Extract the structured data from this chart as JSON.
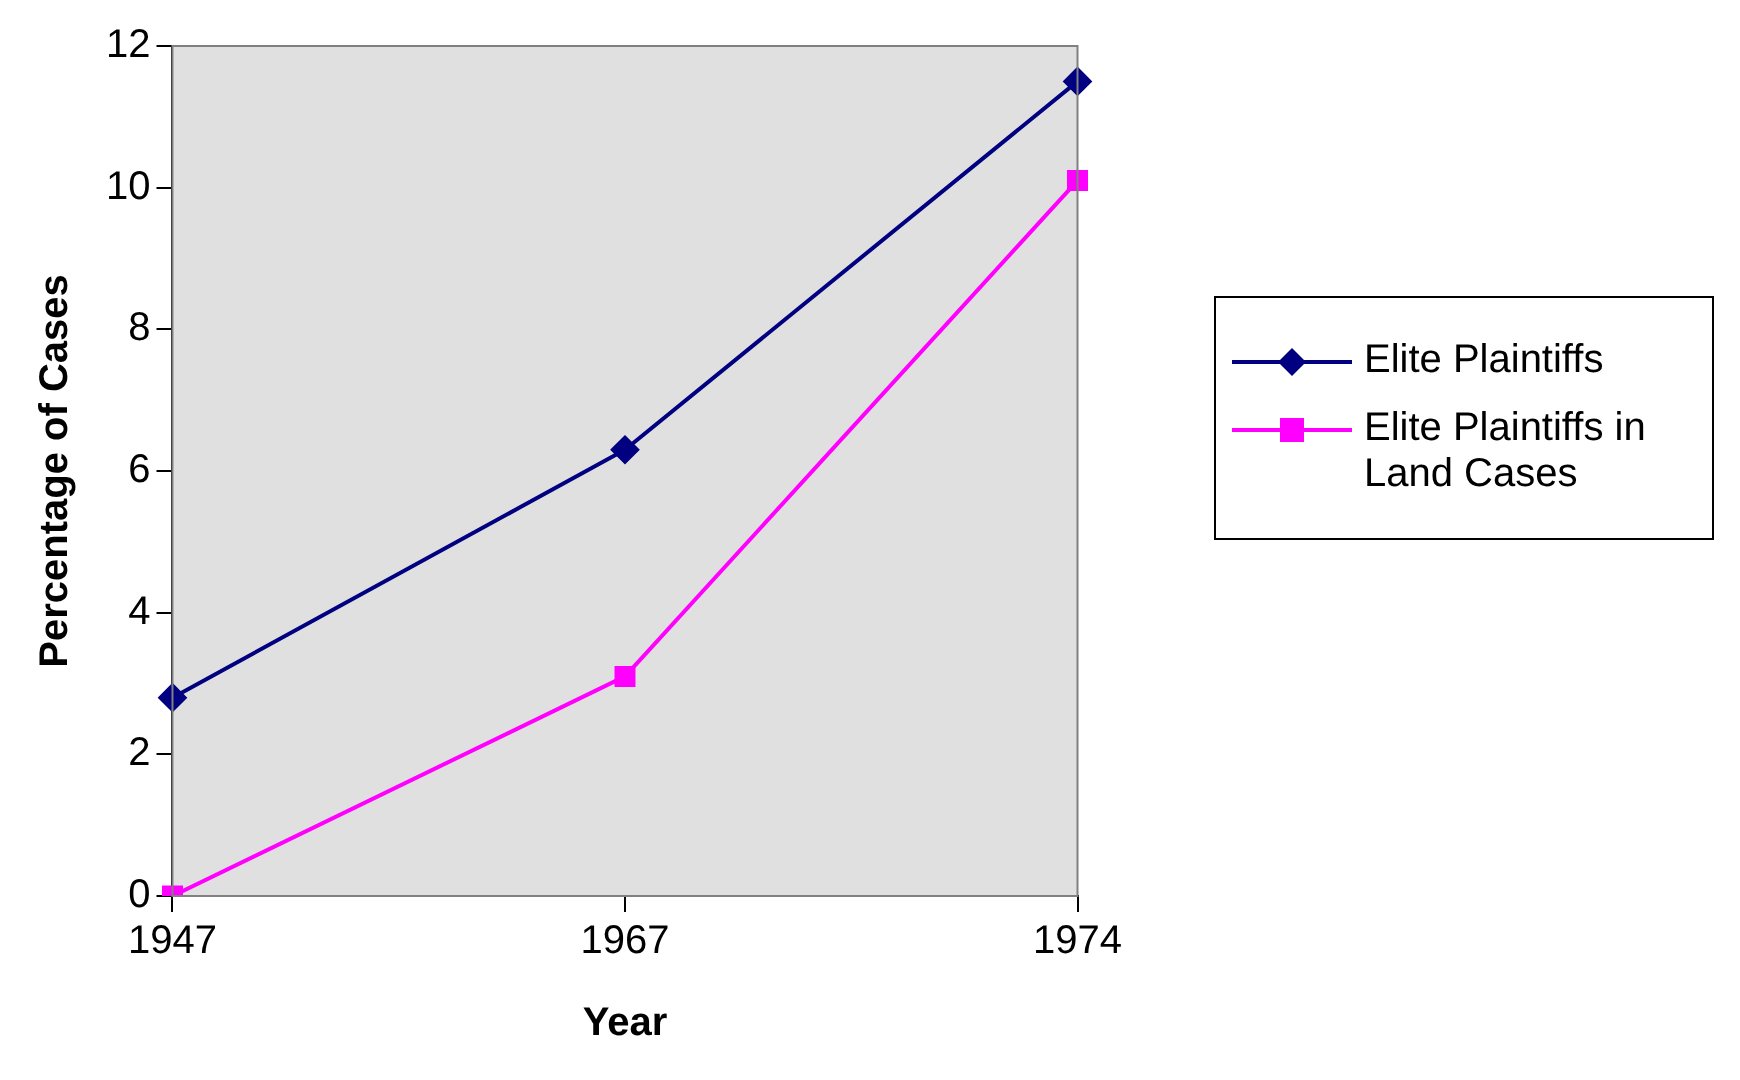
{
  "chart_data": {
    "type": "line",
    "xlabel": "Year",
    "ylabel": "Percentage of Cases",
    "categories": [
      "1947",
      "1967",
      "1974"
    ],
    "series": [
      {
        "name": "Elite Plaintiffs",
        "color": "#000080",
        "marker": "diamond",
        "values": [
          2.8,
          6.3,
          11.5
        ]
      },
      {
        "name": "Elite Plaintiffs in Land Cases",
        "color": "#ff00ff",
        "marker": "square",
        "values": [
          0,
          3.1,
          10.1
        ]
      }
    ],
    "ylim": [
      0,
      12
    ],
    "yticks": [
      0,
      2,
      4,
      6,
      8,
      10,
      12
    ],
    "grid": false,
    "legend": "right",
    "line_style": "solid"
  }
}
